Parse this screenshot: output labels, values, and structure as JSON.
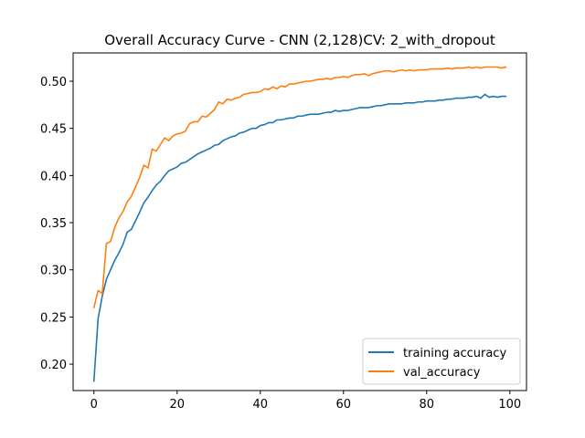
{
  "chart_data": {
    "type": "line",
    "title": "Overall Accuracy Curve - CNN (2,128)CV: 2_with_dropout",
    "xlabel": "",
    "ylabel": "",
    "xlim": [
      -5,
      104
    ],
    "ylim": [
      0.172,
      0.53
    ],
    "xticks": [
      0,
      20,
      40,
      60,
      80,
      100
    ],
    "yticks": [
      0.2,
      0.25,
      0.3,
      0.35,
      0.4,
      0.45,
      0.5
    ],
    "ytick_labels": [
      "0.20",
      "0.25",
      "0.30",
      "0.35",
      "0.40",
      "0.45",
      "0.50"
    ],
    "legend_position": "lower-right",
    "grid": false,
    "x": [
      0,
      1,
      2,
      3,
      4,
      5,
      6,
      7,
      8,
      9,
      10,
      11,
      12,
      13,
      14,
      15,
      16,
      17,
      18,
      19,
      20,
      21,
      22,
      23,
      24,
      25,
      26,
      27,
      28,
      29,
      30,
      31,
      32,
      33,
      34,
      35,
      36,
      37,
      38,
      39,
      40,
      41,
      42,
      43,
      44,
      45,
      46,
      47,
      48,
      49,
      50,
      51,
      52,
      53,
      54,
      55,
      56,
      57,
      58,
      59,
      60,
      61,
      62,
      63,
      64,
      65,
      66,
      67,
      68,
      69,
      70,
      71,
      72,
      73,
      74,
      75,
      76,
      77,
      78,
      79,
      80,
      81,
      82,
      83,
      84,
      85,
      86,
      87,
      88,
      89,
      90,
      91,
      92,
      93,
      94,
      95,
      96,
      97,
      98,
      99
    ],
    "series": [
      {
        "name": "training accuracy",
        "color": "#1f77b4",
        "values": [
          0.182,
          0.248,
          0.272,
          0.29,
          0.3,
          0.31,
          0.318,
          0.327,
          0.34,
          0.343,
          0.352,
          0.361,
          0.371,
          0.377,
          0.384,
          0.39,
          0.394,
          0.4,
          0.405,
          0.407,
          0.409,
          0.413,
          0.414,
          0.417,
          0.42,
          0.423,
          0.425,
          0.427,
          0.429,
          0.432,
          0.433,
          0.437,
          0.439,
          0.441,
          0.442,
          0.445,
          0.446,
          0.448,
          0.45,
          0.45,
          0.453,
          0.454,
          0.456,
          0.456,
          0.459,
          0.459,
          0.46,
          0.461,
          0.461,
          0.463,
          0.463,
          0.464,
          0.465,
          0.465,
          0.465,
          0.466,
          0.467,
          0.467,
          0.469,
          0.468,
          0.469,
          0.469,
          0.47,
          0.471,
          0.472,
          0.472,
          0.472,
          0.473,
          0.474,
          0.474,
          0.475,
          0.476,
          0.476,
          0.476,
          0.476,
          0.477,
          0.477,
          0.477,
          0.478,
          0.478,
          0.479,
          0.479,
          0.479,
          0.48,
          0.48,
          0.481,
          0.481,
          0.482,
          0.482,
          0.482,
          0.483,
          0.483,
          0.484,
          0.482,
          0.486,
          0.483,
          0.484,
          0.483,
          0.484,
          0.484
        ]
      },
      {
        "name": "val_accuracy",
        "color": "#ff7f0e",
        "values": [
          0.26,
          0.278,
          0.275,
          0.328,
          0.33,
          0.345,
          0.355,
          0.362,
          0.372,
          0.378,
          0.388,
          0.398,
          0.411,
          0.408,
          0.428,
          0.426,
          0.433,
          0.44,
          0.437,
          0.442,
          0.444,
          0.445,
          0.447,
          0.455,
          0.457,
          0.457,
          0.463,
          0.462,
          0.466,
          0.47,
          0.478,
          0.476,
          0.481,
          0.48,
          0.482,
          0.483,
          0.486,
          0.487,
          0.488,
          0.488,
          0.489,
          0.492,
          0.491,
          0.494,
          0.492,
          0.495,
          0.494,
          0.497,
          0.497,
          0.498,
          0.499,
          0.5,
          0.5,
          0.501,
          0.502,
          0.502,
          0.503,
          0.502,
          0.504,
          0.504,
          0.505,
          0.504,
          0.506,
          0.507,
          0.507,
          0.508,
          0.506,
          0.508,
          0.509,
          0.51,
          0.511,
          0.511,
          0.51,
          0.511,
          0.512,
          0.511,
          0.512,
          0.511,
          0.512,
          0.512,
          0.512,
          0.513,
          0.513,
          0.513,
          0.513,
          0.514,
          0.513,
          0.514,
          0.514,
          0.514,
          0.515,
          0.514,
          0.515,
          0.514,
          0.515,
          0.515,
          0.515,
          0.515,
          0.514,
          0.515
        ]
      }
    ]
  }
}
